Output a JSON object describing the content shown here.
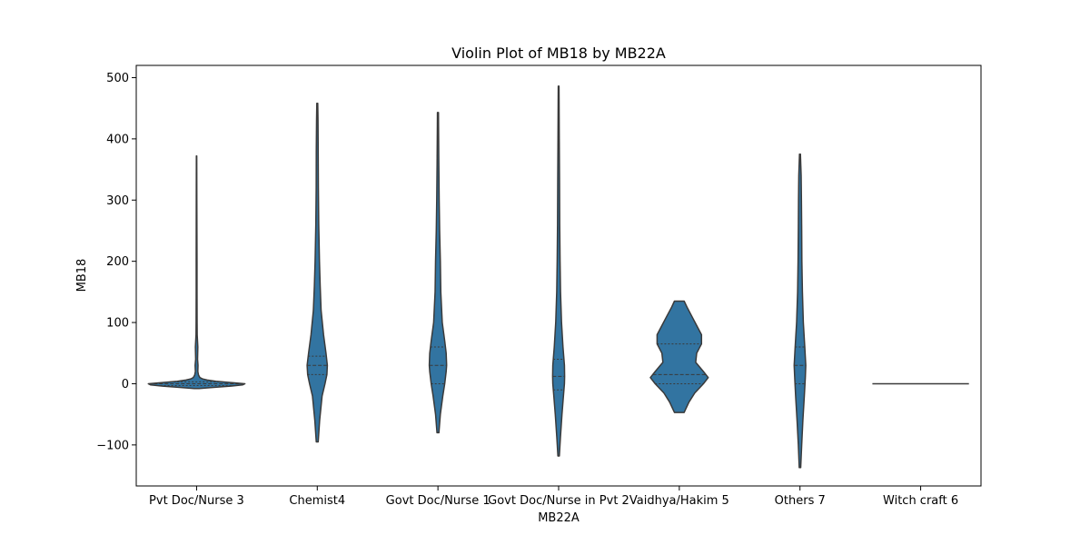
{
  "chart_data": {
    "type": "violin",
    "title": "Violin Plot of MB18 by MB22A",
    "xlabel": "MB22A",
    "ylabel": "MB18",
    "ylim": [
      -167,
      520
    ],
    "yticks": [
      -100,
      0,
      100,
      200,
      300,
      400,
      500
    ],
    "ytick_labels": [
      "−100",
      "0",
      "100",
      "200",
      "300",
      "400",
      "500"
    ],
    "grid": false,
    "color": "#3274a1",
    "edge_color": "#3a3a3a",
    "categories": [
      "Pvt Doc/Nurse 3",
      "Chemist4",
      "Govt Doc/Nurse 1",
      "Govt Doc/Nurse in Pvt 2",
      "Vaidhya/Hakim 5",
      "Others 7",
      "Witch craft 6"
    ],
    "violins": [
      {
        "category": "Pvt Doc/Nurse 3",
        "min": -8,
        "max": 372,
        "quartiles": [
          -3,
          0,
          3
        ],
        "profile": [
          [
            -8,
            0.05
          ],
          [
            -6,
            0.35
          ],
          [
            -4,
            0.7
          ],
          [
            -2,
            0.95
          ],
          [
            0,
            1.0
          ],
          [
            2,
            0.7
          ],
          [
            4,
            0.4
          ],
          [
            6,
            0.22
          ],
          [
            8,
            0.12
          ],
          [
            10,
            0.07
          ],
          [
            14,
            0.04
          ],
          [
            20,
            0.025
          ],
          [
            30,
            0.03
          ],
          [
            40,
            0.02
          ],
          [
            60,
            0.025
          ],
          [
            80,
            0.012
          ],
          [
            100,
            0.01
          ],
          [
            150,
            0.008
          ],
          [
            200,
            0.008
          ],
          [
            300,
            0.006
          ],
          [
            372,
            0.004
          ]
        ]
      },
      {
        "category": "Chemist4",
        "min": -95,
        "max": 458,
        "quartiles": [
          15,
          30,
          45
        ],
        "profile": [
          [
            -95,
            0.02
          ],
          [
            -60,
            0.05
          ],
          [
            -20,
            0.1
          ],
          [
            0,
            0.16
          ],
          [
            15,
            0.2
          ],
          [
            30,
            0.21
          ],
          [
            50,
            0.18
          ],
          [
            80,
            0.13
          ],
          [
            120,
            0.08
          ],
          [
            160,
            0.06
          ],
          [
            200,
            0.045
          ],
          [
            260,
            0.03
          ],
          [
            320,
            0.022
          ],
          [
            380,
            0.02
          ],
          [
            430,
            0.015
          ],
          [
            458,
            0.01
          ]
        ]
      },
      {
        "category": "Govt Doc/Nurse 1",
        "min": -80,
        "max": 443,
        "quartiles": [
          0,
          30,
          60
        ],
        "profile": [
          [
            -80,
            0.02
          ],
          [
            -50,
            0.05
          ],
          [
            -20,
            0.1
          ],
          [
            0,
            0.14
          ],
          [
            20,
            0.17
          ],
          [
            30,
            0.18
          ],
          [
            50,
            0.17
          ],
          [
            70,
            0.14
          ],
          [
            100,
            0.09
          ],
          [
            150,
            0.06
          ],
          [
            200,
            0.05
          ],
          [
            250,
            0.035
          ],
          [
            300,
            0.025
          ],
          [
            360,
            0.018
          ],
          [
            420,
            0.012
          ],
          [
            443,
            0.01
          ]
        ]
      },
      {
        "category": "Govt Doc/Nurse in Pvt 2",
        "min": -118,
        "max": 486,
        "quartiles": [
          -10,
          12,
          40
        ],
        "profile": [
          [
            -118,
            0.015
          ],
          [
            -90,
            0.035
          ],
          [
            -50,
            0.07
          ],
          [
            -20,
            0.1
          ],
          [
            0,
            0.12
          ],
          [
            12,
            0.125
          ],
          [
            30,
            0.12
          ],
          [
            60,
            0.09
          ],
          [
            100,
            0.06
          ],
          [
            150,
            0.04
          ],
          [
            200,
            0.03
          ],
          [
            260,
            0.022
          ],
          [
            330,
            0.018
          ],
          [
            400,
            0.014
          ],
          [
            460,
            0.01
          ],
          [
            486,
            0.008
          ]
        ]
      },
      {
        "category": "Vaidhya/Hakim 5",
        "min": -47,
        "max": 135,
        "quartiles": [
          0,
          15,
          65
        ],
        "profile": [
          [
            -47,
            0.1
          ],
          [
            -30,
            0.2
          ],
          [
            -15,
            0.32
          ],
          [
            0,
            0.5
          ],
          [
            10,
            0.6
          ],
          [
            20,
            0.5
          ],
          [
            35,
            0.34
          ],
          [
            50,
            0.36
          ],
          [
            65,
            0.46
          ],
          [
            80,
            0.46
          ],
          [
            95,
            0.36
          ],
          [
            110,
            0.26
          ],
          [
            125,
            0.16
          ],
          [
            135,
            0.1
          ]
        ]
      },
      {
        "category": "Others 7",
        "min": -137,
        "max": 375,
        "quartiles": [
          0,
          30,
          60
        ],
        "profile": [
          [
            -137,
            0.015
          ],
          [
            -100,
            0.035
          ],
          [
            -60,
            0.06
          ],
          [
            -20,
            0.09
          ],
          [
            10,
            0.11
          ],
          [
            30,
            0.12
          ],
          [
            60,
            0.1
          ],
          [
            100,
            0.07
          ],
          [
            150,
            0.05
          ],
          [
            200,
            0.04
          ],
          [
            250,
            0.035
          ],
          [
            300,
            0.03
          ],
          [
            340,
            0.025
          ],
          [
            375,
            0.01
          ]
        ]
      },
      {
        "category": "Witch craft 6",
        "min": 0,
        "max": 0,
        "quartiles": [
          0,
          0,
          0
        ],
        "profile": []
      }
    ]
  }
}
